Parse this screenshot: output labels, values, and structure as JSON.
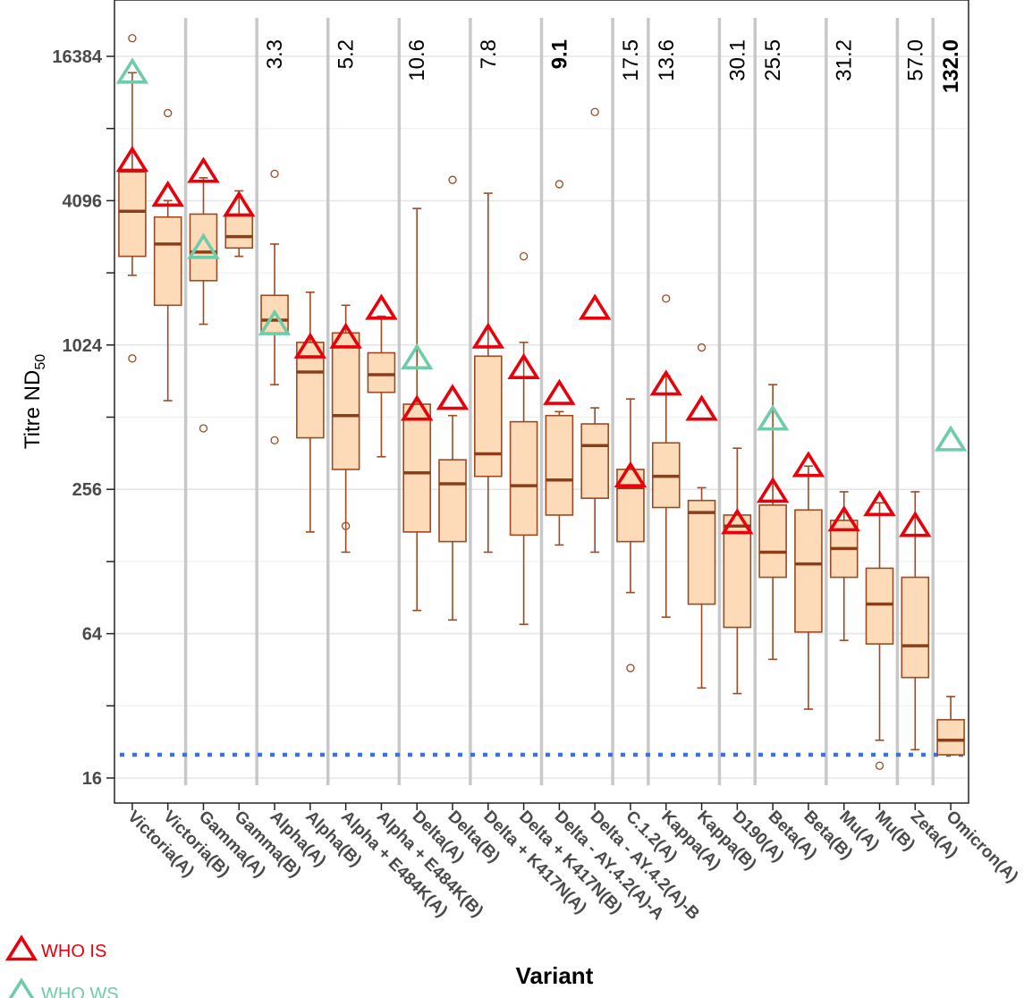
{
  "chart_data": {
    "type": "box",
    "title": "",
    "xlabel": "Variant",
    "ylabel": "Titre ND",
    "ylabel_sub": "50",
    "y_scale": "log2",
    "ylim": [
      13,
      27000
    ],
    "y_ticks": [
      16,
      64,
      256,
      1024,
      4096,
      16384
    ],
    "y_tick_labels": [
      "16",
      "64",
      "256",
      "1024",
      "4096",
      "16384"
    ],
    "grid": true,
    "detection_limit": 20,
    "colors": {
      "box_fill": "#FDDBB9",
      "box_stroke": "#9C4A22",
      "median": "#8B3E1A",
      "who_is": "#E8000B",
      "who_ws": "#6FCBA8",
      "limit_line": "#3F6FE0",
      "divider": "#C8C8C8",
      "fold_default": "#000000",
      "fold_blue": "#0070C0",
      "fold_brown": "#C0734A"
    },
    "categories": [
      "Victoria(A)",
      "Victoria(B)",
      "Gamma(A)",
      "Gamma(B)",
      "Alpha(A)",
      "Alpha(B)",
      "Alpha + E484K(A)",
      "Alpha + E484K(B)",
      "Delta(A)",
      "Delta(B)",
      "Delta + K417N(A)",
      "Delta + K417N(B)",
      "Delta - AY.4.2(A)-A",
      "Delta - AY.4.2(A)-B",
      "C.1.2(A)",
      "Kappa(A)",
      "Kappa(B)",
      "D190(A)",
      "Beta(A)",
      "Beta(B)",
      "Mu(A)",
      "Mu(B)",
      "Zeta(A)",
      "Omicron(A)"
    ],
    "boxes": [
      {
        "q1": 2400,
        "median": 3700,
        "q3": 5400,
        "lo": 2000,
        "hi": 14000,
        "outliers": [
          19500,
          900
        ]
      },
      {
        "q1": 1500,
        "median": 2700,
        "q3": 3500,
        "lo": 600,
        "hi": 4100,
        "outliers": [
          9500
        ]
      },
      {
        "q1": 1900,
        "median": 2500,
        "q3": 3600,
        "lo": 1250,
        "hi": 5100,
        "outliers": [
          460
        ]
      },
      {
        "q1": 2600,
        "median": 2900,
        "q3": 3600,
        "lo": 2400,
        "hi": 4500,
        "outliers": []
      },
      {
        "q1": 1150,
        "median": 1300,
        "q3": 1650,
        "lo": 700,
        "hi": 2700,
        "outliers": [
          5300,
          410
        ]
      },
      {
        "q1": 420,
        "median": 790,
        "q3": 1050,
        "lo": 170,
        "hi": 1700,
        "outliers": []
      },
      {
        "q1": 310,
        "median": 520,
        "q3": 1150,
        "lo": 140,
        "hi": 1500,
        "outliers": [
          180
        ]
      },
      {
        "q1": 650,
        "median": 770,
        "q3": 950,
        "lo": 350,
        "hi": 1350,
        "outliers": []
      },
      {
        "q1": 170,
        "median": 300,
        "q3": 580,
        "lo": 80,
        "hi": 3800,
        "outliers": []
      },
      {
        "q1": 155,
        "median": 270,
        "q3": 340,
        "lo": 73,
        "hi": 520,
        "outliers": [
          5000
        ]
      },
      {
        "q1": 290,
        "median": 360,
        "q3": 920,
        "lo": 140,
        "hi": 4400,
        "outliers": []
      },
      {
        "q1": 165,
        "median": 265,
        "q3": 490,
        "lo": 70,
        "hi": 1050,
        "outliers": [
          2400
        ]
      },
      {
        "q1": 200,
        "median": 280,
        "q3": 520,
        "lo": 150,
        "hi": 540,
        "outliers": [
          4800
        ]
      },
      {
        "q1": 235,
        "median": 390,
        "q3": 480,
        "lo": 140,
        "hi": 560,
        "outliers": [
          9600
        ]
      },
      {
        "q1": 155,
        "median": 260,
        "q3": 310,
        "lo": 95,
        "hi": 610,
        "outliers": [
          46
        ]
      },
      {
        "q1": 215,
        "median": 290,
        "q3": 400,
        "lo": 75,
        "hi": 760,
        "outliers": [
          1600
        ]
      },
      {
        "q1": 85,
        "median": 205,
        "q3": 230,
        "lo": 38,
        "hi": 260,
        "outliers": [
          1000
        ]
      },
      {
        "q1": 68,
        "median": 180,
        "q3": 200,
        "lo": 36,
        "hi": 380,
        "outliers": []
      },
      {
        "q1": 110,
        "median": 140,
        "q3": 220,
        "lo": 50,
        "hi": 700,
        "outliers": []
      },
      {
        "q1": 65,
        "median": 125,
        "q3": 210,
        "lo": 31,
        "hi": 320,
        "outliers": []
      },
      {
        "q1": 110,
        "median": 145,
        "q3": 190,
        "lo": 60,
        "hi": 250,
        "outliers": []
      },
      {
        "q1": 58,
        "median": 85,
        "q3": 120,
        "lo": 23,
        "hi": 225,
        "outliers": [
          18
        ]
      },
      {
        "q1": 42,
        "median": 57,
        "q3": 110,
        "lo": 21,
        "hi": 250,
        "outliers": []
      },
      {
        "q1": 20,
        "median": 23,
        "q3": 28,
        "lo": 20,
        "hi": 35,
        "outliers": []
      }
    ],
    "who_is": [
      6000,
      4300,
      5400,
      3900,
      null,
      1000,
      1100,
      1450,
      550,
      610,
      1100,
      820,
      640,
      1450,
      290,
      700,
      550,
      185,
      250,
      320,
      190,
      220,
      180,
      null
    ],
    "who_ws": [
      14000,
      null,
      2600,
      null,
      1250,
      null,
      null,
      null,
      900,
      null,
      null,
      null,
      null,
      null,
      null,
      null,
      null,
      null,
      500,
      null,
      null,
      null,
      null,
      410
    ],
    "fold_changes": [
      {
        "label": "3.3",
        "index": 4,
        "color": "fold_default"
      },
      {
        "label": "5.2",
        "index": 6,
        "color": "fold_default"
      },
      {
        "label": "10.6",
        "index": 8,
        "color": "fold_default"
      },
      {
        "label": "7.8",
        "index": 10,
        "color": "fold_default"
      },
      {
        "label": "9.1",
        "index": 12,
        "color": "fold_blue"
      },
      {
        "label": "17.5",
        "index": 14,
        "color": "fold_default"
      },
      {
        "label": "13.6",
        "index": 15,
        "color": "fold_default"
      },
      {
        "label": "30.1",
        "index": 17,
        "color": "fold_default"
      },
      {
        "label": "25.5",
        "index": 18,
        "color": "fold_default"
      },
      {
        "label": "31.2",
        "index": 20,
        "color": "fold_default"
      },
      {
        "label": "57.0",
        "index": 22,
        "color": "fold_default"
      },
      {
        "label": "132.0",
        "index": 23,
        "color": "fold_brown"
      }
    ],
    "dividers_after": [
      1,
      3,
      5,
      7,
      9,
      11,
      13,
      14,
      16,
      17,
      19,
      21,
      22
    ],
    "legend": [
      {
        "name": "WHO IS",
        "color_key": "who_is"
      },
      {
        "name": "WHO WS",
        "color_key": "who_ws"
      }
    ]
  }
}
